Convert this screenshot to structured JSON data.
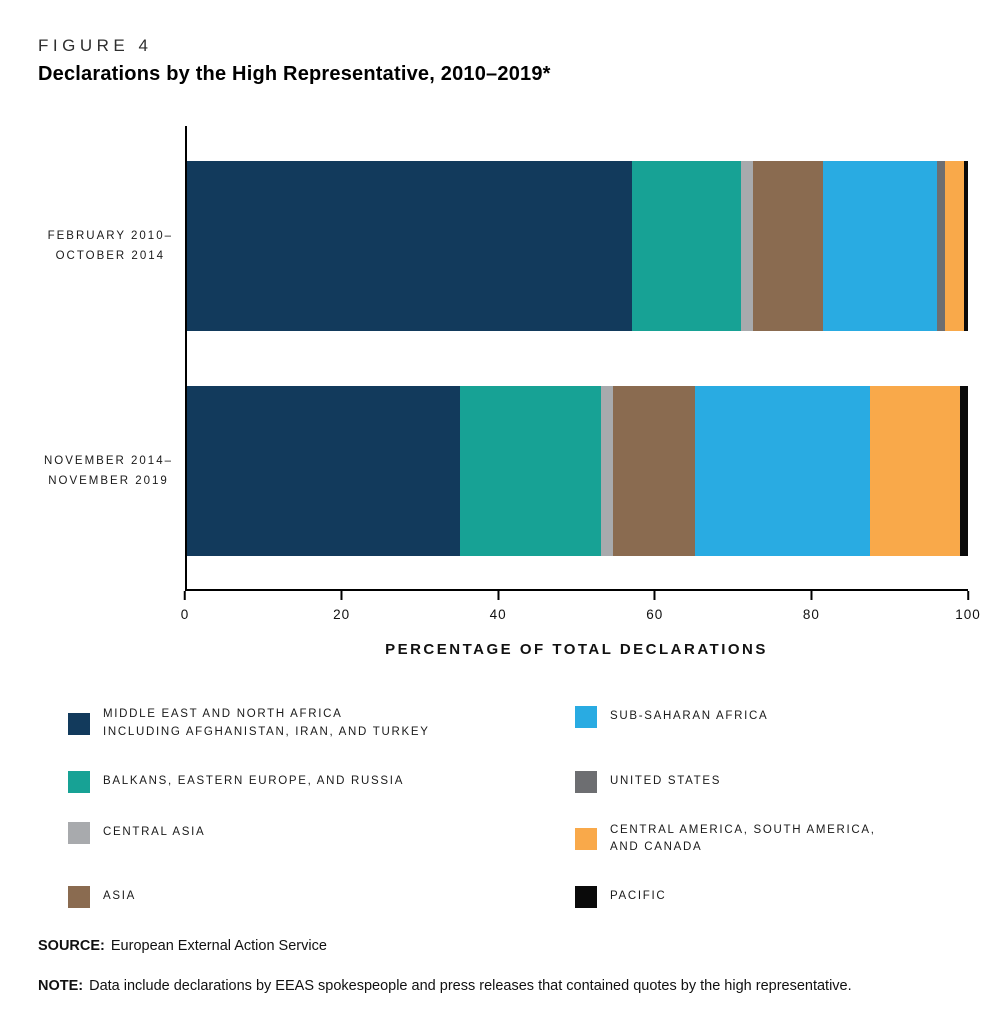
{
  "header": {
    "figure_label": "FIGURE 4",
    "title": "Declarations by the High Representative, 2010–2019*"
  },
  "chart_data": {
    "type": "bar",
    "orientation": "horizontal",
    "stacked": true,
    "unit": "percent of total declarations",
    "xlabel": "PERCENTAGE OF TOTAL DECLARATIONS",
    "xlim": [
      0,
      100
    ],
    "x_ticks": [
      0,
      20,
      40,
      60,
      80,
      100
    ],
    "grid": false,
    "categories": [
      {
        "id": "feb2010-oct2014",
        "lines": [
          "FEBRUARY 2010–",
          "OCTOBER 2014"
        ]
      },
      {
        "id": "nov2014-nov2019",
        "lines": [
          "NOVEMBER 2014–",
          "NOVEMBER 2019"
        ]
      }
    ],
    "series": [
      {
        "id": "mena",
        "name": "MIDDLE EAST AND NORTH AFRICA INCLUDING AFGHANISTAN, IRAN, AND TURKEY",
        "color": "#123A5C",
        "values": [
          57,
          35
        ]
      },
      {
        "id": "balkans-eastern-europe-russia",
        "name": "BALKANS, EASTERN EUROPE, AND RUSSIA",
        "color": "#17A295",
        "values": [
          14,
          18
        ]
      },
      {
        "id": "central-asia",
        "name": "CENTRAL ASIA",
        "color": "#A8AAAD",
        "values": [
          1.5,
          1.5
        ]
      },
      {
        "id": "asia",
        "name": "ASIA",
        "color": "#8A6B50",
        "values": [
          9,
          10.5
        ]
      },
      {
        "id": "sub-saharan-africa",
        "name": "SUB-SAHARAN AFRICA",
        "color": "#29ABE2",
        "values": [
          14.5,
          22.5
        ]
      },
      {
        "id": "united-states",
        "name": "UNITED STATES",
        "color": "#6D6E71",
        "values": [
          1,
          0
        ]
      },
      {
        "id": "central-south-america-canada",
        "name": "CENTRAL AMERICA, SOUTH AMERICA, AND CANADA",
        "color": "#F9A94A",
        "values": [
          2.5,
          11.5
        ]
      },
      {
        "id": "pacific",
        "name": "PACIFIC",
        "color": "#0A0A0A",
        "values": [
          0.5,
          1
        ]
      }
    ]
  },
  "legend": {
    "columns": [
      [
        {
          "id": "mena",
          "lines": [
            "MIDDLE EAST AND NORTH AFRICA",
            "INCLUDING AFGHANISTAN, IRAN, AND TURKEY"
          ],
          "color": "#123A5C"
        },
        {
          "id": "balkans-eastern-europe-russia",
          "lines": [
            "BALKANS, EASTERN EUROPE, AND RUSSIA"
          ],
          "color": "#17A295"
        },
        {
          "id": "central-asia",
          "lines": [
            "CENTRAL ASIA"
          ],
          "color": "#A8AAAD"
        },
        {
          "id": "asia",
          "lines": [
            "ASIA"
          ],
          "color": "#8A6B50"
        }
      ],
      [
        {
          "id": "sub-saharan-africa",
          "lines": [
            "SUB-SAHARAN AFRICA"
          ],
          "color": "#29ABE2"
        },
        {
          "id": "united-states",
          "lines": [
            "UNITED STATES"
          ],
          "color": "#6D6E71"
        },
        {
          "id": "central-south-america-canada",
          "lines": [
            "CENTRAL AMERICA, SOUTH AMERICA,",
            "AND CANADA"
          ],
          "color": "#F9A94A"
        },
        {
          "id": "pacific",
          "lines": [
            "PACIFIC"
          ],
          "color": "#0A0A0A"
        }
      ]
    ]
  },
  "footer": {
    "source_label": "SOURCE:",
    "source_text": "European External Action Service",
    "note_label": "NOTE:",
    "note_text": "Data include declarations by EEAS spokespeople and press releases that contained quotes by the high representative."
  }
}
